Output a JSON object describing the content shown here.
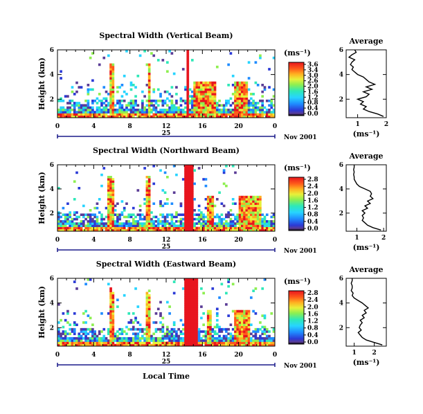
{
  "chart_data": [
    {
      "type": "heatmap",
      "title": "Spectral Width (Vertical Beam)",
      "ylabel": "Height (km)",
      "x_ticks": [
        "0",
        "4",
        "8",
        "12",
        "16",
        "20",
        "0"
      ],
      "y_ticks": [
        "2",
        "4",
        "6"
      ],
      "date_day": "25",
      "date_label": "Nov 2001",
      "xlim": [
        0,
        24
      ],
      "ylim": [
        0.5,
        6
      ],
      "colorbar": {
        "unit": "(ms⁻¹)",
        "ticks": [
          "3.6",
          "3.4",
          "3.0",
          "2.6",
          "2.0",
          "1.6",
          "1.2",
          "0.8",
          "0.4",
          "0.0"
        ]
      },
      "activity_hours": [
        5.8,
        6.2,
        9.9,
        10.3,
        14.2,
        14.6,
        15.0,
        17.4,
        19.5,
        21.0
      ],
      "average_profile": {
        "title": "Average",
        "xlabel": "(ms⁻¹)",
        "x_ticks": [
          "1",
          "2"
        ],
        "y_ticks": [
          "2",
          "4",
          "6"
        ],
        "xlim": [
          0.6,
          2.0
        ],
        "ylim": [
          0.5,
          6
        ],
        "height": [
          0.6,
          0.8,
          1.0,
          1.2,
          1.4,
          1.6,
          1.8,
          2.0,
          2.2,
          2.4,
          2.6,
          2.8,
          3.0,
          3.2,
          3.4,
          3.6,
          3.8,
          4.0,
          4.2,
          4.4,
          4.6,
          4.8,
          5.0,
          5.2,
          5.4,
          5.6,
          5.8,
          6.0
        ],
        "value": [
          1.9,
          1.7,
          1.4,
          1.2,
          1.3,
          1.1,
          1.2,
          1.0,
          1.3,
          1.4,
          1.2,
          1.5,
          1.3,
          1.6,
          1.4,
          1.3,
          1.2,
          1.0,
          0.9,
          0.8,
          0.85,
          0.75,
          0.8,
          0.9,
          0.7,
          0.8,
          0.95,
          0.9
        ]
      }
    },
    {
      "type": "heatmap",
      "title": "Spectral Width (Northward Beam)",
      "ylabel": "Height (km)",
      "x_ticks": [
        "0",
        "4",
        "8",
        "12",
        "16",
        "20",
        "0"
      ],
      "y_ticks": [
        "2",
        "4",
        "6"
      ],
      "date_day": "25",
      "date_label": "Nov 2001",
      "xlim": [
        0,
        24
      ],
      "ylim": [
        0.5,
        6
      ],
      "colorbar": {
        "unit": "(ms⁻¹)",
        "ticks": [
          "2.8",
          "2.4",
          "2.0",
          "1.6",
          "1.2",
          "0.8",
          "0.4",
          "0.0"
        ]
      },
      "activity_hours": [
        5.4,
        6.3,
        9.7,
        10.3,
        14.0,
        15.0,
        16.4,
        17.2,
        20.0,
        22.5
      ],
      "average_profile": {
        "title": "Average",
        "xlabel": "(ms⁻¹)",
        "x_ticks": [
          "1",
          "2"
        ],
        "y_ticks": [
          "2",
          "4",
          "6"
        ],
        "xlim": [
          0.6,
          2.1
        ],
        "ylim": [
          0.5,
          6
        ],
        "height": [
          0.6,
          0.8,
          1.0,
          1.2,
          1.4,
          1.6,
          1.8,
          2.0,
          2.2,
          2.4,
          2.6,
          2.8,
          3.0,
          3.2,
          3.4,
          3.6,
          3.8,
          4.0,
          4.2,
          4.4,
          4.6,
          4.8,
          5.0,
          5.2,
          5.4,
          5.6,
          5.8,
          6.0
        ],
        "value": [
          1.9,
          1.6,
          1.4,
          1.3,
          1.2,
          1.25,
          1.2,
          1.3,
          1.2,
          1.4,
          1.3,
          1.5,
          1.4,
          1.6,
          1.5,
          1.55,
          1.5,
          1.3,
          1.1,
          1.0,
          0.95,
          0.9,
          0.9,
          0.88,
          0.9,
          0.88,
          0.9,
          0.9
        ]
      }
    },
    {
      "type": "heatmap",
      "title": "Spectral Width (Eastward Beam)",
      "ylabel": "Height (km)",
      "xlabel": "Local Time",
      "x_ticks": [
        "0",
        "4",
        "8",
        "12",
        "16",
        "20",
        "0"
      ],
      "y_ticks": [
        "2",
        "4",
        "6"
      ],
      "date_day": "25",
      "date_label": "Nov 2001",
      "xlim": [
        0,
        24
      ],
      "ylim": [
        0.5,
        6
      ],
      "colorbar": {
        "unit": "(ms⁻¹)",
        "ticks": [
          "2.8",
          "2.4",
          "2.0",
          "1.6",
          "1.2",
          "0.8",
          "0.4",
          "0.0"
        ]
      },
      "activity_hours": [
        5.7,
        6.3,
        9.8,
        10.3,
        14.0,
        15.5,
        16.4,
        17.0,
        19.6,
        21.2
      ],
      "average_profile": {
        "title": "Average",
        "xlabel": "(ms⁻¹)",
        "x_ticks": [
          "1",
          "2"
        ],
        "y_ticks": [
          "2",
          "4",
          "6"
        ],
        "xlim": [
          0.6,
          2.6
        ],
        "ylim": [
          0.5,
          6
        ],
        "height": [
          0.6,
          0.8,
          1.0,
          1.2,
          1.4,
          1.6,
          1.8,
          2.0,
          2.2,
          2.4,
          2.6,
          2.8,
          3.0,
          3.2,
          3.4,
          3.6,
          3.8,
          4.0,
          4.2,
          4.4,
          4.6,
          4.8,
          5.0,
          5.2,
          5.4,
          5.6,
          5.8,
          6.0
        ],
        "value": [
          2.4,
          2.0,
          1.6,
          1.4,
          1.3,
          1.2,
          1.35,
          1.25,
          1.3,
          1.4,
          1.3,
          1.5,
          1.4,
          1.6,
          1.5,
          1.7,
          1.55,
          1.4,
          1.2,
          1.0,
          0.9,
          0.95,
          0.85,
          0.9,
          0.9,
          0.85,
          0.9,
          0.9
        ]
      }
    }
  ]
}
